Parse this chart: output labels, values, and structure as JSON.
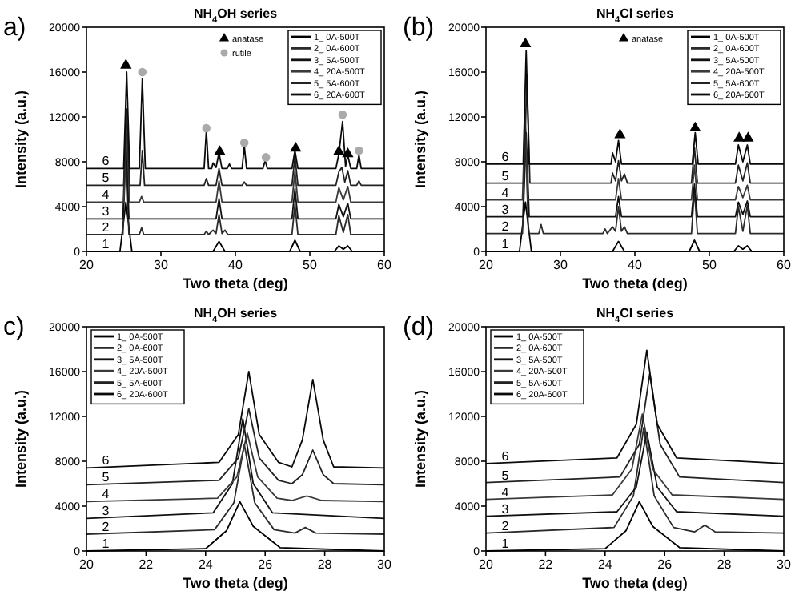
{
  "chart_data": [
    {
      "type": "line",
      "title": "NH$_{4}$OH series",
      "xlabel": "Two theta (deg)",
      "ylabel": "Intensity (a.u.)",
      "xlim": [
        20,
        60
      ],
      "xticks": [
        20,
        30,
        40,
        50,
        60
      ],
      "ylim": [
        0,
        20000
      ],
      "yticks": [
        0,
        4000,
        8000,
        12000,
        16000,
        20000
      ],
      "legend": "top right",
      "annotations": [
        "a)",
        "1",
        "2",
        "3",
        "4",
        "5",
        "6"
      ],
      "series": [
        {
          "name": "1_ 0A-500T",
          "color": "#000000",
          "x": [
            20,
            24.5,
            25.3,
            26.1,
            30,
            37.0,
            37.8,
            38.6,
            47.3,
            48.0,
            48.7,
            53.3,
            53.9,
            54.5,
            55.1,
            55.7,
            60
          ],
          "values": [
            0,
            0,
            4400,
            0,
            0,
            0,
            900,
            0,
            0,
            1000,
            0,
            0,
            500,
            200,
            500,
            0,
            0
          ]
        },
        {
          "name": "2_ 0A-600T",
          "color": "#2b2b2b",
          "x": [
            20,
            24.9,
            25.3,
            25.7,
            27.1,
            27.4,
            27.7,
            35.8,
            36.1,
            36.4,
            37.0,
            37.4,
            37.8,
            38.2,
            38.6,
            39.0,
            47.6,
            48.0,
            48.4,
            53.5,
            53.9,
            54.5,
            55.1,
            55.5,
            60
          ],
          "values": [
            1500,
            1500,
            9500,
            1500,
            1500,
            2100,
            1500,
            1500,
            1800,
            1500,
            1900,
            1600,
            3300,
            1600,
            1900,
            1500,
            1500,
            4200,
            1500,
            1500,
            3200,
            1700,
            3300,
            1500,
            1500
          ]
        },
        {
          "name": "3_ 5A-500T",
          "color": "#111111",
          "x": [
            20,
            24.9,
            25.3,
            25.7,
            37.4,
            37.8,
            38.2,
            47.6,
            48.0,
            48.4,
            53.5,
            53.9,
            54.5,
            55.1,
            55.5,
            60
          ],
          "values": [
            2900,
            2900,
            11800,
            2900,
            2900,
            4700,
            2900,
            2900,
            5600,
            2900,
            2900,
            4200,
            3100,
            4300,
            2900,
            2900
          ]
        },
        {
          "name": "4_ 20A-500T",
          "color": "#3a3a3a",
          "x": [
            20,
            25.0,
            25.4,
            25.8,
            27.1,
            27.4,
            27.7,
            37.4,
            37.8,
            38.2,
            47.6,
            48.0,
            48.4,
            53.5,
            53.9,
            54.5,
            55.1,
            55.5,
            60
          ],
          "values": [
            4400,
            4400,
            10500,
            4400,
            4400,
            4900,
            4400,
            4400,
            6300,
            4400,
            4400,
            7200,
            4400,
            4400,
            5700,
            4600,
            5800,
            4400,
            4400
          ]
        },
        {
          "name": "5_ 5A-600T",
          "color": "#222222",
          "x": [
            20,
            25.0,
            25.4,
            25.8,
            27.2,
            27.5,
            27.8,
            35.8,
            36.1,
            36.4,
            37.4,
            37.8,
            38.2,
            40.9,
            41.2,
            41.5,
            47.6,
            48.0,
            48.4,
            53.5,
            53.9,
            54.3,
            54.7,
            55.1,
            55.5,
            56.3,
            56.6,
            56.9,
            60
          ],
          "values": [
            5900,
            5900,
            12700,
            5900,
            5900,
            9000,
            5900,
            5900,
            6500,
            5900,
            5900,
            7400,
            5900,
            5900,
            6200,
            5900,
            5900,
            8500,
            5900,
            5900,
            7100,
            7500,
            6200,
            7200,
            5900,
            5900,
            6300,
            5900,
            5900
          ]
        },
        {
          "name": "6_ 20A-600T",
          "color": "#0a0a0a",
          "x": [
            20,
            25.0,
            25.4,
            25.8,
            27.1,
            27.5,
            27.9,
            35.8,
            36.1,
            36.4,
            36.8,
            37.0,
            37.4,
            37.8,
            38.2,
            38.9,
            39.2,
            39.5,
            40.9,
            41.2,
            41.5,
            43.7,
            44.0,
            44.3,
            47.6,
            48.0,
            48.4,
            53.5,
            53.9,
            54.4,
            54.8,
            55.1,
            55.5,
            56.3,
            56.6,
            56.9,
            60
          ],
          "values": [
            7400,
            7400,
            16000,
            7400,
            7400,
            15400,
            7400,
            7400,
            10800,
            7400,
            7400,
            7900,
            7500,
            8800,
            7400,
            7400,
            7800,
            7400,
            7400,
            9400,
            7400,
            7400,
            8100,
            7400,
            7400,
            9000,
            7400,
            7400,
            8700,
            11600,
            7600,
            8600,
            7400,
            7400,
            8600,
            7400,
            7400
          ]
        },
        {
          "name": "anatase",
          "type": "scatter",
          "marker": "triangle",
          "color": "#000000",
          "x": [
            25.3,
            37.9,
            48.1,
            53.9,
            55.1
          ],
          "values": [
            16600,
            8900,
            9200,
            8900,
            8700
          ]
        },
        {
          "name": "rutile",
          "type": "scatter",
          "marker": "circle",
          "color": "#aaaaaa",
          "x": [
            27.5,
            36.1,
            41.2,
            44.1,
            54.4,
            56.6
          ],
          "values": [
            16000,
            11000,
            9700,
            8400,
            12200,
            9000
          ]
        }
      ]
    },
    {
      "type": "line",
      "title": "NH$_{4}$Cl series",
      "xlabel": "Two theta (deg)",
      "ylabel": "Intensity (a.u.)",
      "xlim": [
        20,
        60
      ],
      "xticks": [
        20,
        30,
        40,
        50,
        60
      ],
      "ylim": [
        0,
        20000
      ],
      "yticks": [
        0,
        4000,
        8000,
        12000,
        16000,
        20000
      ],
      "legend": "top right",
      "annotations": [
        "(b)",
        "1",
        "2",
        "3",
        "4",
        "5",
        "6"
      ],
      "series": [
        {
          "name": "1_ 0A-500T",
          "color": "#000000",
          "x": [
            20,
            24.5,
            25.3,
            26.1,
            30,
            37.0,
            37.8,
            38.6,
            47.3,
            48.0,
            48.7,
            53.3,
            53.9,
            54.5,
            55.1,
            55.7,
            60
          ],
          "values": [
            0,
            0,
            4400,
            0,
            0,
            0,
            900,
            0,
            0,
            1000,
            0,
            0,
            500,
            200,
            500,
            0,
            0
          ]
        },
        {
          "name": "2_ 0A-600T",
          "color": "#2b2b2b",
          "x": [
            20,
            24.9,
            25.3,
            25.7,
            27.1,
            27.4,
            27.7,
            35.7,
            36.0,
            36.3,
            37.0,
            37.4,
            37.8,
            38.2,
            38.6,
            39.0,
            47.6,
            48.0,
            48.4,
            53.5,
            53.9,
            54.5,
            55.1,
            55.5,
            60
          ],
          "values": [
            1600,
            1600,
            11000,
            1600,
            1600,
            2400,
            1600,
            1600,
            2000,
            1600,
            2200,
            1800,
            4000,
            1800,
            2200,
            1600,
            1600,
            5500,
            1600,
            1600,
            4000,
            1800,
            4100,
            1600,
            1600
          ]
        },
        {
          "name": "3_ 5A-500T",
          "color": "#111111",
          "x": [
            20,
            25.0,
            25.4,
            25.8,
            37.4,
            37.8,
            38.2,
            47.6,
            48.0,
            48.4,
            53.5,
            53.9,
            54.5,
            55.1,
            55.5,
            60
          ],
          "values": [
            3100,
            3100,
            10600,
            3100,
            3100,
            4900,
            3100,
            3100,
            6000,
            3100,
            3100,
            4400,
            3300,
            4500,
            3100,
            3100
          ]
        },
        {
          "name": "4_ 20A-500T",
          "color": "#3a3a3a",
          "x": [
            20,
            24.9,
            25.25,
            25.6,
            37.4,
            37.8,
            38.2,
            47.6,
            48.0,
            48.4,
            53.5,
            53.9,
            54.5,
            55.1,
            55.5,
            60
          ],
          "values": [
            4600,
            4600,
            12200,
            4600,
            4600,
            6500,
            4600,
            4600,
            7700,
            4600,
            4600,
            5800,
            4800,
            5900,
            4600,
            4600
          ]
        },
        {
          "name": "5_ 5A-600T",
          "color": "#222222",
          "x": [
            20,
            25.1,
            25.5,
            25.9,
            36.8,
            37.0,
            37.4,
            37.8,
            38.2,
            38.6,
            39.0,
            47.6,
            48.0,
            48.4,
            53.5,
            53.9,
            54.5,
            55.1,
            55.5,
            60
          ],
          "values": [
            6100,
            6100,
            15800,
            6100,
            6100,
            7000,
            6300,
            8100,
            6300,
            6900,
            6100,
            6100,
            9300,
            6100,
            6100,
            7700,
            6300,
            7900,
            6100,
            6100
          ]
        },
        {
          "name": "6_ 20A-600T",
          "color": "#0a0a0a",
          "x": [
            20,
            25.0,
            25.4,
            25.8,
            36.8,
            37.0,
            37.4,
            37.8,
            38.2,
            47.7,
            48.1,
            48.5,
            53.5,
            53.9,
            54.5,
            55.1,
            55.5,
            60
          ],
          "values": [
            7800,
            7800,
            17900,
            7800,
            7800,
            8800,
            8000,
            9900,
            7800,
            7800,
            10600,
            7800,
            7800,
            9500,
            8000,
            9500,
            7800,
            7800
          ]
        },
        {
          "name": "anatase",
          "type": "scatter",
          "marker": "triangle",
          "color": "#000000",
          "x": [
            25.3,
            38.0,
            48.1,
            54.0,
            55.2
          ],
          "values": [
            18500,
            10400,
            11000,
            10100,
            10100
          ]
        }
      ]
    },
    {
      "type": "line",
      "title": "NH$_{4}$OH series",
      "xlabel": "Two theta (deg)",
      "ylabel": "Intensity (a.u.)",
      "xlim": [
        20,
        30
      ],
      "xticks": [
        20,
        22,
        24,
        26,
        28,
        30
      ],
      "ylim": [
        0,
        20000
      ],
      "yticks": [
        0,
        4000,
        8000,
        12000,
        16000,
        20000
      ],
      "legend": "top left",
      "annotations": [
        "c)",
        "1",
        "2",
        "3",
        "4",
        "5",
        "6"
      ],
      "series": [
        {
          "name": "1_ 0A-500T",
          "color": "#000000",
          "x": [
            20,
            24.0,
            24.7,
            25.15,
            25.6,
            26.5,
            30
          ],
          "values": [
            0,
            200,
            1800,
            4400,
            2200,
            300,
            0
          ]
        },
        {
          "name": "2_ 0A-600T",
          "color": "#2b2b2b",
          "x": [
            20,
            24.3,
            24.95,
            25.3,
            25.65,
            26.3,
            27.0,
            27.35,
            27.7,
            30
          ],
          "values": [
            1500,
            1900,
            4300,
            9500,
            4300,
            1900,
            1600,
            2100,
            1600,
            1500
          ]
        },
        {
          "name": "3_ 5A-500T",
          "color": "#111111",
          "x": [
            20,
            24.25,
            24.9,
            25.25,
            25.6,
            26.25,
            30
          ],
          "values": [
            2900,
            3400,
            6000,
            11800,
            6000,
            3400,
            2900
          ]
        },
        {
          "name": "4_ 20A-500T",
          "color": "#3a3a3a",
          "x": [
            20,
            24.4,
            25.05,
            25.4,
            25.75,
            26.4,
            26.9,
            27.4,
            27.9,
            30
          ],
          "values": [
            4400,
            4700,
            6600,
            10500,
            6600,
            4700,
            4500,
            4900,
            4500,
            4400
          ]
        },
        {
          "name": "5_ 5A-600T",
          "color": "#222222",
          "x": [
            20,
            24.45,
            25.1,
            25.45,
            25.8,
            26.45,
            26.9,
            27.25,
            27.6,
            27.95,
            28.3,
            30
          ],
          "values": [
            5900,
            6300,
            8300,
            12700,
            8300,
            6300,
            6000,
            6800,
            9000,
            6800,
            6000,
            5900
          ]
        },
        {
          "name": "6_ 20A-600T",
          "color": "#0a0a0a",
          "x": [
            20,
            24.45,
            25.1,
            25.45,
            25.8,
            26.45,
            26.9,
            27.25,
            27.6,
            27.95,
            28.3,
            30
          ],
          "values": [
            7400,
            7900,
            10400,
            16000,
            10400,
            7900,
            7500,
            9900,
            15300,
            9900,
            7500,
            7400
          ]
        }
      ]
    },
    {
      "type": "line",
      "title": "NH$_{4}$Cl series",
      "xlabel": "Two theta (deg)",
      "ylabel": "Intensity (a.u.)",
      "xlim": [
        20,
        30
      ],
      "xticks": [
        20,
        22,
        24,
        26,
        28,
        30
      ],
      "ylim": [
        0,
        20000
      ],
      "yticks": [
        0,
        4000,
        8000,
        12000,
        16000,
        20000
      ],
      "legend": "top left",
      "annotations": [
        "(d)",
        "1",
        "2",
        "3",
        "4",
        "5",
        "6"
      ],
      "series": [
        {
          "name": "1_ 0A-500T",
          "color": "#000000",
          "x": [
            20,
            24.0,
            24.7,
            25.15,
            25.6,
            26.5,
            30
          ],
          "values": [
            0,
            200,
            1800,
            4400,
            2200,
            300,
            0
          ]
        },
        {
          "name": "2_ 0A-600T",
          "color": "#2b2b2b",
          "x": [
            20,
            24.3,
            24.95,
            25.3,
            25.65,
            26.3,
            27.0,
            27.35,
            27.7,
            30
          ],
          "values": [
            1600,
            2100,
            4900,
            11000,
            4900,
            2100,
            1700,
            2300,
            1700,
            1600
          ]
        },
        {
          "name": "3_ 5A-500T",
          "color": "#111111",
          "x": [
            20,
            24.4,
            25.05,
            25.4,
            25.75,
            26.4,
            30
          ],
          "values": [
            3100,
            3500,
            5700,
            10600,
            5700,
            3500,
            3100
          ]
        },
        {
          "name": "4_ 20A-500T",
          "color": "#3a3a3a",
          "x": [
            20,
            24.25,
            24.9,
            25.25,
            25.6,
            26.25,
            30
          ],
          "values": [
            4600,
            5000,
            7300,
            12200,
            7300,
            5000,
            4600
          ]
        },
        {
          "name": "5_ 5A-600T",
          "color": "#222222",
          "x": [
            20,
            24.5,
            25.15,
            25.5,
            25.85,
            26.5,
            30
          ],
          "values": [
            6100,
            6600,
            9500,
            15800,
            9500,
            6600,
            6100
          ]
        },
        {
          "name": "6_ 20A-600T",
          "color": "#0a0a0a",
          "x": [
            20,
            24.4,
            25.05,
            25.4,
            25.75,
            26.4,
            30
          ],
          "values": [
            7800,
            8300,
            11300,
            17900,
            11300,
            8300,
            7800
          ]
        }
      ]
    }
  ]
}
